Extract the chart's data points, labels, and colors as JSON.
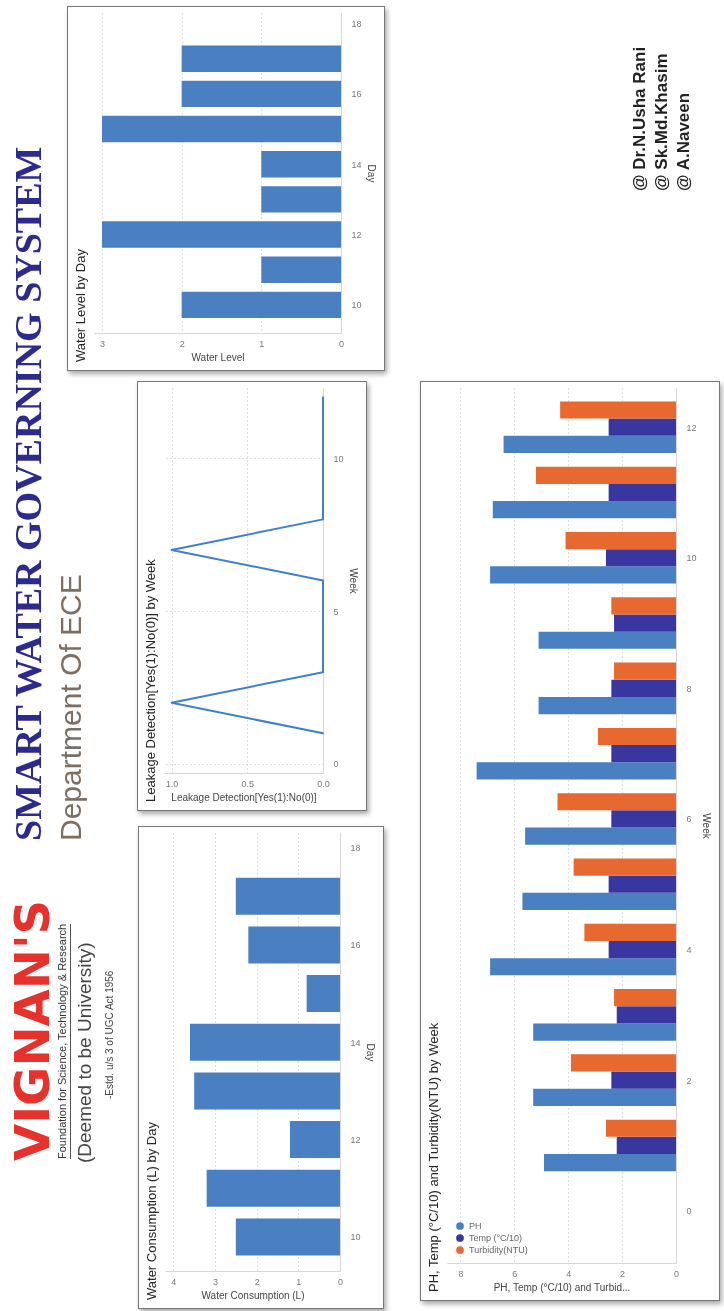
{
  "chart_data": [
    {
      "type": "other",
      "title": "SMART WATER GOVERNING SYSTEM",
      "subtitle": "Department Of ECE",
      "annotations": [
        "VIGNAN'S",
        "Foundation for Science, Technology & Research",
        "(Deemed to be University)",
        "-Estd. u/s 3 of UGC Act 1956",
        "@ Dr.N.Usha Rani",
        "@ Sk.Md.Khasim",
        "@ A.Naveen"
      ]
    },
    {
      "type": "bar",
      "orientation": "horizontal",
      "title": "Water Consumption (L) by Day",
      "xlabel": "Water Consumption (L)",
      "ylabel": "Day",
      "x": [
        10,
        11,
        12,
        13,
        14,
        15,
        16,
        17
      ],
      "values": [
        2.5,
        3.2,
        1.2,
        3.5,
        3.6,
        0.8,
        2.2,
        2.5
      ],
      "color": "#4a7fc1",
      "xlim": [
        4.2,
        0
      ],
      "xticks": [
        4,
        3,
        2,
        1,
        0
      ],
      "ylim": [
        9.3,
        18.3
      ],
      "yticks": [
        10,
        12,
        14,
        16,
        18
      ],
      "grid": "x"
    },
    {
      "type": "line",
      "orientation": "horizontal",
      "title": "Leakage Detection[Yes(1):No(0)] by Week",
      "xlabel": "Leakage Detection[Yes(1):No(0)]",
      "ylabel": "Week",
      "x": [
        1,
        2,
        3,
        4,
        5,
        6,
        7,
        8,
        9,
        10,
        11,
        12
      ],
      "values": [
        0,
        1,
        0,
        0,
        0,
        0,
        1,
        0,
        0,
        0,
        0,
        0
      ],
      "color": "#3f7fcc",
      "xlim": [
        1.05,
        0
      ],
      "xticks": [
        {
          "value": 1,
          "label": "1.0"
        },
        {
          "value": 0.5,
          "label": "0.5"
        },
        {
          "value": 0,
          "label": "0.0"
        }
      ],
      "ylim": [
        -0.3,
        12.3
      ],
      "yticks": [
        0,
        5,
        10
      ],
      "grid": true
    },
    {
      "type": "bar",
      "orientation": "horizontal",
      "title": "Water Level by Day",
      "xlabel": "Water Level",
      "ylabel": "Day",
      "x": [
        10,
        11,
        12,
        13,
        14,
        15,
        16,
        17
      ],
      "values": [
        2,
        1,
        3,
        1,
        1,
        3,
        2,
        2
      ],
      "color": "#4a7fc1",
      "xlim": [
        3.1,
        0
      ],
      "xticks": [
        3,
        2,
        1,
        0
      ],
      "ylim": [
        9.2,
        18.3
      ],
      "yticks": [
        10,
        12,
        14,
        16,
        18
      ],
      "grid": "x"
    },
    {
      "type": "bar",
      "orientation": "horizontal",
      "title": "PH, Temp (°C/10) and Turbidity(NTU) by Week",
      "xlabel": "PH, Temp (°C/10) and Turbid...",
      "ylabel": "Week",
      "x": [
        1,
        2,
        3,
        4,
        5,
        6,
        7,
        8,
        9,
        10,
        11,
        12
      ],
      "xlim": [
        8.5,
        0
      ],
      "xticks": [
        8,
        6,
        4,
        2,
        0
      ],
      "ylim": [
        -0.8,
        12.6
      ],
      "yticks": [
        0,
        2,
        4,
        6,
        8,
        10,
        12
      ],
      "grid": "x",
      "legend": "bottom left",
      "series": [
        {
          "name": "PH",
          "color": "#4a7fc1",
          "values": [
            4.9,
            5.3,
            5.3,
            6.9,
            5.7,
            5.6,
            7.4,
            5.1,
            5.1,
            6.9,
            6.8,
            6.4
          ]
        },
        {
          "name": "Temp (°C/10)",
          "color": "#3a36a0",
          "values": [
            2.2,
            2.4,
            2.2,
            2.5,
            2.5,
            2.4,
            2.4,
            2.4,
            2.3,
            2.6,
            2.5,
            2.5
          ]
        },
        {
          "name": "Turbidity(NTU)",
          "color": "#e8692f",
          "values": [
            2.6,
            3.9,
            2.3,
            3.4,
            3.8,
            4.4,
            2.9,
            2.3,
            2.4,
            4.1,
            5.2,
            4.3
          ]
        }
      ]
    }
  ]
}
